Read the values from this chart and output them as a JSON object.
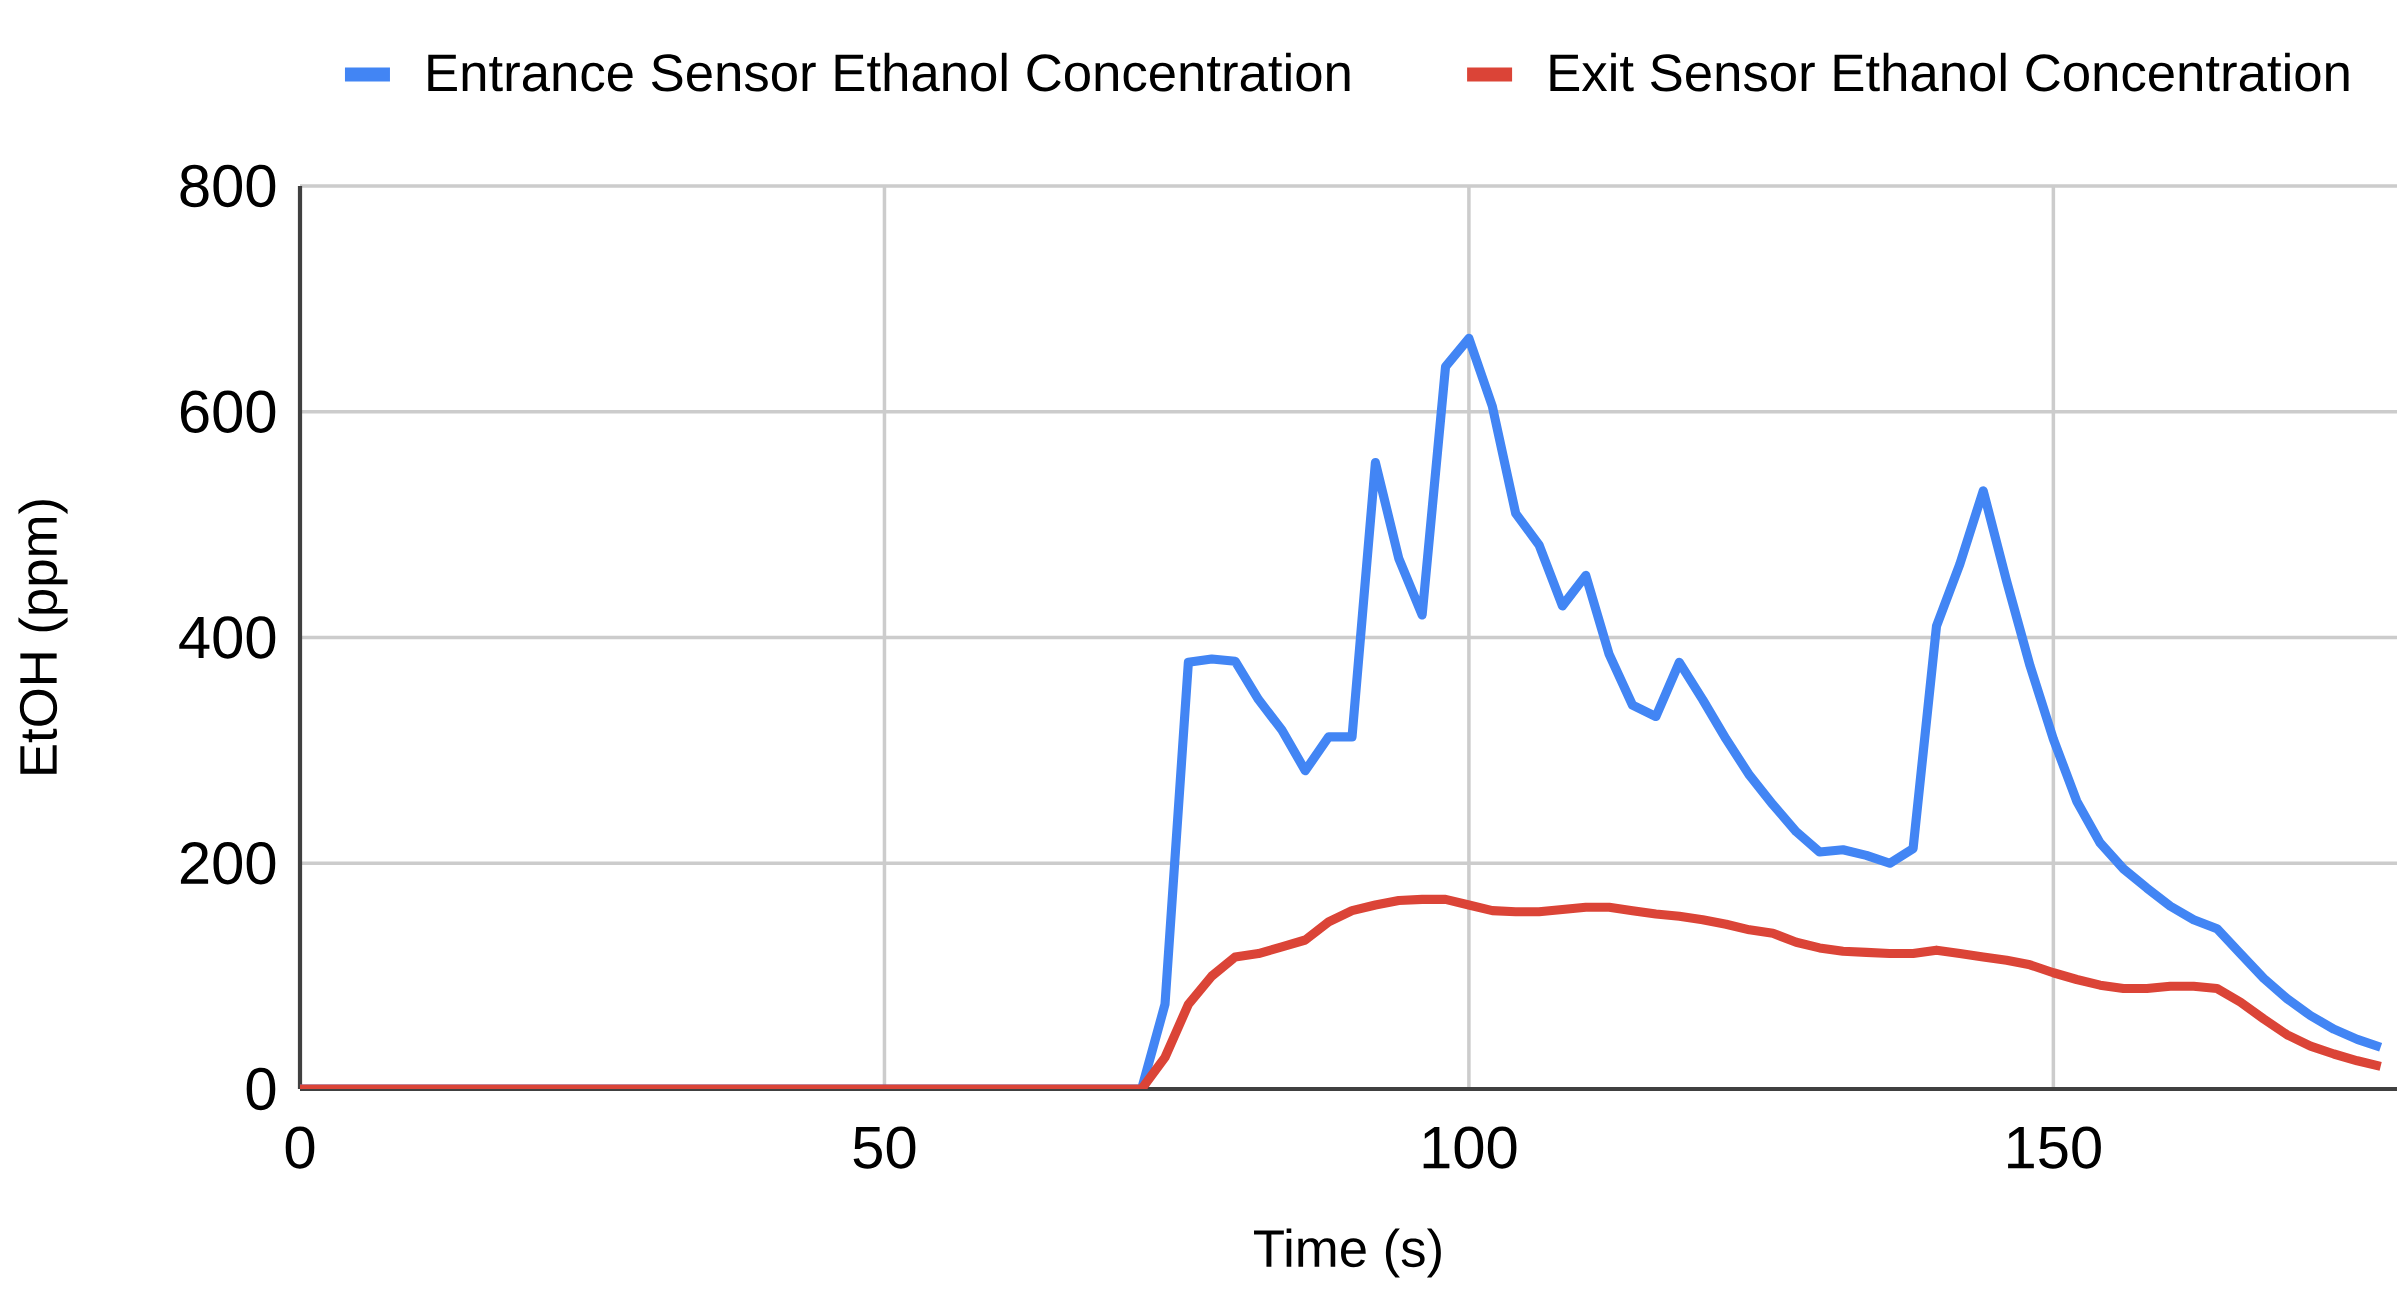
{
  "chart_data": {
    "type": "line",
    "xlabel": "Time (s)",
    "ylabel": "EtOH (ppm)",
    "x": [
      0,
      72,
      74,
      76,
      78,
      80,
      82,
      84,
      86,
      88,
      90,
      92,
      94,
      96,
      98,
      100,
      102,
      104,
      106,
      108,
      110,
      112,
      114,
      116,
      118,
      120,
      122,
      124,
      126,
      128,
      130,
      132,
      134,
      136,
      138,
      140,
      142,
      144,
      146,
      148,
      150,
      152,
      154,
      156,
      158,
      160,
      162,
      164,
      166,
      168,
      170,
      172,
      174,
      176,
      178
    ],
    "series": [
      {
        "name": "Entrance Sensor Ethanol Concentration",
        "color": "#4285f4",
        "values": [
          0,
          0,
          75,
          378,
          381,
          379,
          345,
          318,
          282,
          312,
          312,
          555,
          470,
          420,
          640,
          665,
          605,
          510,
          482,
          428,
          455,
          385,
          340,
          330,
          378,
          345,
          310,
          278,
          252,
          228,
          210,
          212,
          207,
          200,
          213,
          410,
          465,
          530,
          450,
          375,
          310,
          255,
          218,
          195,
          178,
          162,
          150,
          142,
          120,
          98,
          80,
          65,
          53,
          44,
          37
        ]
      },
      {
        "name": "Exit Sensor Ethanol Concentration",
        "color": "#db4437",
        "values": [
          0,
          0,
          28,
          75,
          100,
          117,
          120,
          126,
          132,
          148,
          158,
          163,
          167,
          168,
          168,
          163,
          158,
          157,
          157,
          159,
          161,
          161,
          158,
          155,
          153,
          150,
          146,
          141,
          138,
          130,
          125,
          122,
          121,
          120,
          120,
          123,
          120,
          117,
          114,
          110,
          103,
          97,
          92,
          89,
          89,
          91,
          91,
          89,
          77,
          62,
          48,
          38,
          31,
          25,
          20
        ]
      }
    ],
    "xlim": [
      0,
      179.4
    ],
    "ylim": [
      0,
      800
    ],
    "xticks": [
      0,
      50,
      100,
      150
    ],
    "yticks": [
      0,
      200,
      400,
      600,
      800
    ],
    "grid": true,
    "legend": "top",
    "line_style": "solid",
    "marker": "none"
  }
}
